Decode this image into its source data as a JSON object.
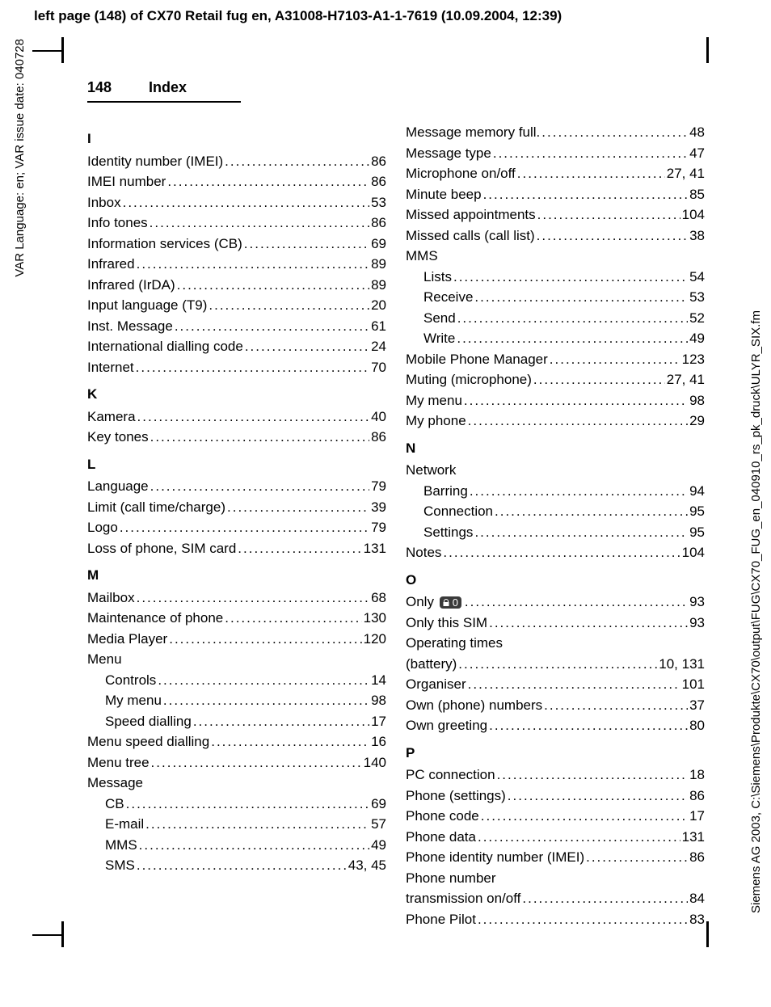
{
  "header": "left page (148) of CX70 Retail fug en, A31008-H7103-A1-1-7619 (10.09.2004, 12:39)",
  "side_left": "VAR Language: en; VAR issue date: 040728",
  "side_right": "Siemens AG 2003, C:\\Siemens\\Produkte\\CX70\\output\\FUG\\CX70_FUG_en_040910_rs_pk_druck\\ULYR_SIX.fm",
  "page_number": "148",
  "page_title": "Index",
  "lock_glyph": "0",
  "left_col": [
    {
      "type": "letter",
      "text": "I"
    },
    {
      "type": "entry",
      "label": "Identity number (IMEI)",
      "page": "86"
    },
    {
      "type": "entry",
      "label": "IMEI number",
      "page": "86"
    },
    {
      "type": "entry",
      "label": "Inbox",
      "page": "53"
    },
    {
      "type": "entry",
      "label": "Info tones",
      "page": "86"
    },
    {
      "type": "entry",
      "label": "Information services (CB)",
      "page": "69"
    },
    {
      "type": "entry",
      "label": "Infrared",
      "page": "89"
    },
    {
      "type": "entry",
      "label": "Infrared (IrDA)",
      "page": "89"
    },
    {
      "type": "entry",
      "label": "Input language (T9)",
      "page": "20"
    },
    {
      "type": "entry",
      "label": "Inst. Message",
      "page": "61"
    },
    {
      "type": "entry",
      "label": "International dialling code",
      "page": "24"
    },
    {
      "type": "entry",
      "label": "Internet",
      "page": "70"
    },
    {
      "type": "letter",
      "text": "K"
    },
    {
      "type": "entry",
      "label": "Kamera",
      "page": "40"
    },
    {
      "type": "entry",
      "label": "Key tones",
      "page": "86"
    },
    {
      "type": "letter",
      "text": "L"
    },
    {
      "type": "entry",
      "label": "Language",
      "page": "79"
    },
    {
      "type": "entry",
      "label": "Limit (call time/charge)",
      "page": "39"
    },
    {
      "type": "entry",
      "label": "Logo",
      "page": "79"
    },
    {
      "type": "entry",
      "label": "Loss of phone, SIM card",
      "page": "131"
    },
    {
      "type": "letter",
      "text": "M"
    },
    {
      "type": "entry",
      "label": "Mailbox",
      "page": "68"
    },
    {
      "type": "entry",
      "label": "Maintenance of phone",
      "page": "130"
    },
    {
      "type": "entry",
      "label": "Media Player",
      "page": "120"
    },
    {
      "type": "header",
      "label": "Menu"
    },
    {
      "type": "sub",
      "label": "Controls",
      "page": "14"
    },
    {
      "type": "sub",
      "label": "My menu",
      "page": "98"
    },
    {
      "type": "sub",
      "label": "Speed dialling",
      "page": "17"
    },
    {
      "type": "entry",
      "label": "Menu speed dialling",
      "page": "16"
    },
    {
      "type": "entry",
      "label": "Menu tree",
      "page": "140"
    },
    {
      "type": "header",
      "label": "Message"
    },
    {
      "type": "sub",
      "label": "CB",
      "page": "69"
    },
    {
      "type": "sub",
      "label": "E-mail",
      "page": "57"
    },
    {
      "type": "sub",
      "label": "MMS",
      "page": "49"
    },
    {
      "type": "sub",
      "label": "SMS",
      "page": "43, 45"
    }
  ],
  "right_col": [
    {
      "type": "entry",
      "label": "Message memory full.",
      "page": "48"
    },
    {
      "type": "entry",
      "label": "Message type",
      "page": "47"
    },
    {
      "type": "entry",
      "label": "Microphone on/off",
      "page": "27, 41"
    },
    {
      "type": "entry",
      "label": "Minute beep",
      "page": "85"
    },
    {
      "type": "entry",
      "label": "Missed appointments",
      "page": "104"
    },
    {
      "type": "entry",
      "label": "Missed calls (call list)",
      "page": "38"
    },
    {
      "type": "header",
      "label": "MMS"
    },
    {
      "type": "sub",
      "label": "Lists",
      "page": "54"
    },
    {
      "type": "sub",
      "label": "Receive",
      "page": "53"
    },
    {
      "type": "sub",
      "label": "Send",
      "page": "52"
    },
    {
      "type": "sub",
      "label": "Write",
      "page": "49"
    },
    {
      "type": "entry",
      "label": "Mobile Phone Manager",
      "page": "123"
    },
    {
      "type": "entry",
      "label": "Muting (microphone)",
      "page": "27, 41"
    },
    {
      "type": "entry",
      "label": "My menu",
      "page": "98"
    },
    {
      "type": "entry",
      "label": "My phone",
      "page": "29"
    },
    {
      "type": "letter",
      "text": "N"
    },
    {
      "type": "header",
      "label": "Network"
    },
    {
      "type": "sub",
      "label": "Barring",
      "page": "94"
    },
    {
      "type": "sub",
      "label": "Connection",
      "page": "95"
    },
    {
      "type": "sub",
      "label": "Settings",
      "page": "95"
    },
    {
      "type": "entry",
      "label": "Notes",
      "page": "104"
    },
    {
      "type": "letter",
      "text": "O"
    },
    {
      "type": "icon_entry",
      "label_pre": "Only ",
      "label_post": "",
      "page": "93"
    },
    {
      "type": "entry",
      "label": "Only this SIM",
      "page": "93"
    },
    {
      "type": "header",
      "label": "Operating times"
    },
    {
      "type": "entry",
      "label": "(battery)",
      "page": "10, 131"
    },
    {
      "type": "entry",
      "label": "Organiser",
      "page": "101"
    },
    {
      "type": "entry",
      "label": "Own (phone) numbers",
      "page": "37"
    },
    {
      "type": "entry",
      "label": "Own greeting",
      "page": "80"
    },
    {
      "type": "letter",
      "text": "P"
    },
    {
      "type": "entry",
      "label": "PC connection",
      "page": "18"
    },
    {
      "type": "entry",
      "label": "Phone (settings)",
      "page": "86"
    },
    {
      "type": "entry",
      "label": "Phone code",
      "page": "17"
    },
    {
      "type": "entry",
      "label": "Phone data",
      "page": "131"
    },
    {
      "type": "entry",
      "label": "Phone identity number (IMEI)",
      "page": "86"
    },
    {
      "type": "header",
      "label": "Phone number"
    },
    {
      "type": "entry",
      "label": "transmission on/off",
      "page": "84"
    },
    {
      "type": "entry",
      "label": "Phone Pilot",
      "page": "83"
    }
  ]
}
